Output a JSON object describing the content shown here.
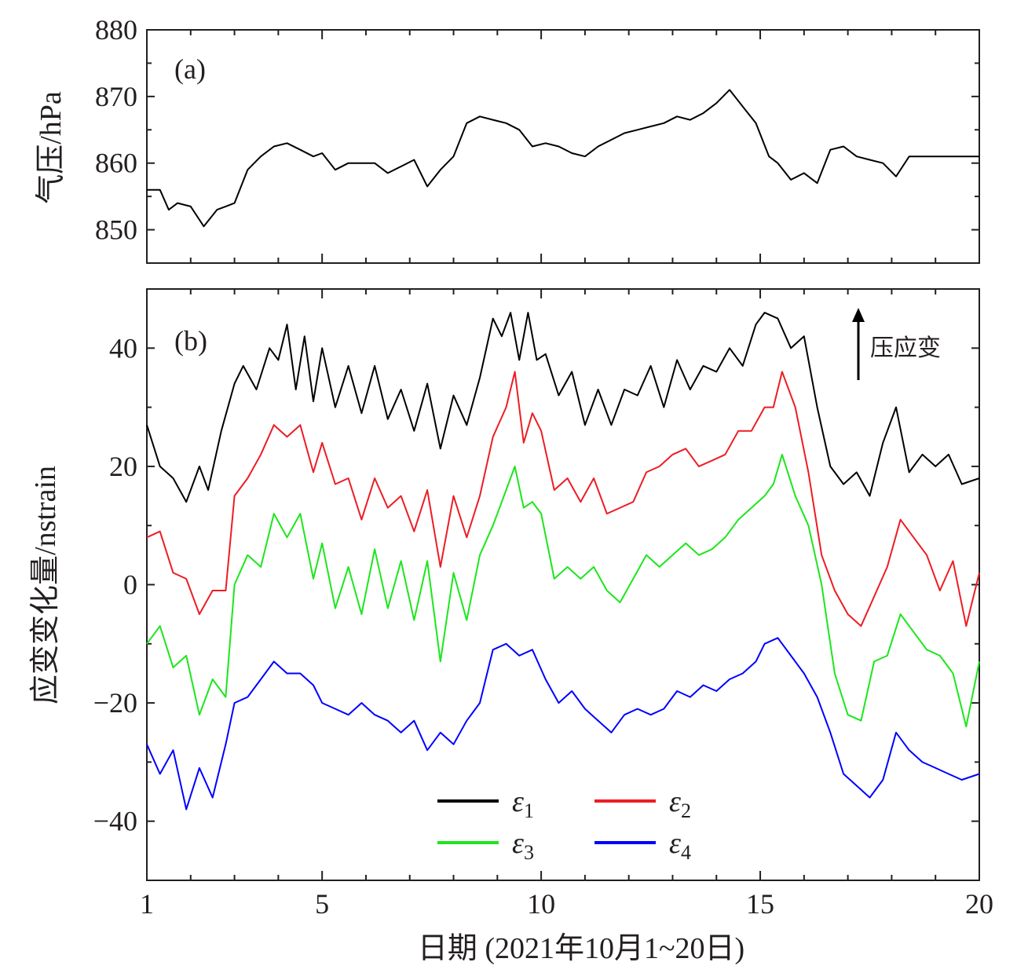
{
  "chart_data": [
    {
      "panel": "a",
      "type": "line",
      "panel_label": "(a)",
      "ylabel": "气压/hPa",
      "ylim": [
        845,
        880
      ],
      "yticks": [
        {
          "value": 850,
          "label": "850"
        },
        {
          "value": 860,
          "label": "860"
        },
        {
          "value": 870,
          "label": "870"
        },
        {
          "value": 880,
          "label": "880"
        }
      ],
      "xlim": [
        1,
        20
      ],
      "series": [
        {
          "name": "气压",
          "color": "#000000",
          "x": [
            1,
            1.3,
            1.5,
            1.7,
            2.0,
            2.3,
            2.6,
            2.8,
            3.0,
            3.3,
            3.6,
            3.9,
            4.2,
            4.5,
            4.8,
            5.0,
            5.3,
            5.6,
            5.9,
            6.2,
            6.5,
            6.8,
            7.1,
            7.4,
            7.7,
            8.0,
            8.3,
            8.6,
            8.9,
            9.2,
            9.5,
            9.8,
            10.1,
            10.4,
            10.7,
            11.0,
            11.3,
            11.6,
            11.9,
            12.2,
            12.5,
            12.8,
            13.1,
            13.4,
            13.7,
            14.0,
            14.3,
            14.6,
            14.9,
            15.2,
            15.4,
            15.7,
            16.0,
            16.3,
            16.6,
            16.9,
            17.2,
            17.5,
            17.8,
            18.1,
            18.4,
            18.7,
            19.0,
            19.3,
            19.6,
            20.0
          ],
          "y": [
            856,
            856,
            853,
            854,
            853.5,
            850.5,
            853,
            853.5,
            854,
            859,
            861,
            862.5,
            863,
            862,
            861,
            861.5,
            859,
            860,
            860,
            860,
            858.5,
            859.5,
            860.5,
            856.5,
            859,
            861,
            866,
            867,
            866.5,
            866,
            865,
            862.5,
            863,
            862.5,
            861.5,
            861,
            862.5,
            863.5,
            864.5,
            865,
            865.5,
            866,
            867,
            866.5,
            867.5,
            869,
            871,
            868.5,
            866,
            861,
            860,
            857.5,
            858.5,
            857,
            862,
            862.5,
            861,
            860.5,
            860,
            858,
            861,
            861,
            861,
            861,
            861,
            861
          ]
        }
      ]
    },
    {
      "panel": "b",
      "type": "line",
      "panel_label": "(b)",
      "ylabel": "应变变化量/nstrain",
      "xlabel": "日期 (2021年10月1~20日)",
      "ylim": [
        -50,
        50
      ],
      "yticks": [
        {
          "value": -40,
          "label": "−40"
        },
        {
          "value": -20,
          "label": "−20"
        },
        {
          "value": 0,
          "label": "0"
        },
        {
          "value": 20,
          "label": "20"
        },
        {
          "value": 40,
          "label": "40"
        }
      ],
      "xlim": [
        1,
        20
      ],
      "xticks": [
        {
          "value": 1,
          "label": "1"
        },
        {
          "value": 5,
          "label": "5"
        },
        {
          "value": 10,
          "label": "10"
        },
        {
          "value": 15,
          "label": "15"
        },
        {
          "value": 20,
          "label": "20"
        }
      ],
      "annotation": "压应变",
      "series": [
        {
          "name": "ε1",
          "color": "#000000",
          "x": [
            1,
            1.3,
            1.6,
            1.9,
            2.2,
            2.4,
            2.7,
            3.0,
            3.2,
            3.5,
            3.8,
            4.0,
            4.2,
            4.4,
            4.6,
            4.8,
            5.0,
            5.3,
            5.6,
            5.9,
            6.2,
            6.5,
            6.8,
            7.1,
            7.4,
            7.7,
            8.0,
            8.3,
            8.6,
            8.9,
            9.1,
            9.3,
            9.5,
            9.7,
            9.9,
            10.1,
            10.4,
            10.7,
            11.0,
            11.3,
            11.6,
            11.9,
            12.2,
            12.5,
            12.8,
            13.1,
            13.4,
            13.7,
            14.0,
            14.3,
            14.6,
            14.9,
            15.1,
            15.4,
            15.7,
            16.0,
            16.3,
            16.6,
            16.9,
            17.2,
            17.5,
            17.8,
            18.1,
            18.4,
            18.7,
            19.0,
            19.3,
            19.6,
            20.0
          ],
          "y": [
            27,
            20,
            18,
            14,
            20,
            16,
            26,
            34,
            37,
            33,
            40,
            38,
            44,
            33,
            42,
            31,
            40,
            30,
            37,
            29,
            37,
            28,
            33,
            26,
            34,
            23,
            32,
            27,
            35,
            45,
            42,
            46,
            38,
            46,
            38,
            39,
            32,
            36,
            27,
            33,
            27,
            33,
            32,
            37,
            30,
            38,
            33,
            37,
            36,
            40,
            37,
            44,
            46,
            45,
            40,
            42,
            30,
            20,
            17,
            19,
            15,
            24,
            30,
            19,
            22,
            20,
            22,
            17,
            18
          ]
        },
        {
          "name": "ε2",
          "color": "#ed1c24",
          "x": [
            1,
            1.3,
            1.6,
            1.9,
            2.2,
            2.5,
            2.8,
            3.0,
            3.3,
            3.6,
            3.9,
            4.2,
            4.5,
            4.8,
            5.0,
            5.3,
            5.6,
            5.9,
            6.2,
            6.5,
            6.8,
            7.1,
            7.4,
            7.7,
            8.0,
            8.3,
            8.6,
            8.9,
            9.2,
            9.4,
            9.6,
            9.8,
            10.0,
            10.3,
            10.6,
            10.9,
            11.2,
            11.5,
            11.8,
            12.1,
            12.4,
            12.7,
            13.0,
            13.3,
            13.6,
            13.9,
            14.2,
            14.5,
            14.8,
            15.1,
            15.3,
            15.5,
            15.8,
            16.1,
            16.4,
            16.7,
            17.0,
            17.3,
            17.6,
            17.9,
            18.2,
            18.5,
            18.8,
            19.1,
            19.4,
            19.7,
            20.0
          ],
          "y": [
            8,
            9,
            2,
            1,
            -5,
            -1,
            -1,
            15,
            18,
            22,
            27,
            25,
            27,
            19,
            24,
            17,
            18,
            11,
            18,
            13,
            15,
            9,
            16,
            3,
            15,
            8,
            15,
            25,
            30,
            36,
            24,
            29,
            26,
            16,
            18,
            14,
            18,
            12,
            13,
            14,
            19,
            20,
            22,
            23,
            20,
            21,
            22,
            26,
            26,
            30,
            30,
            36,
            30,
            19,
            5,
            -1,
            -5,
            -7,
            -2,
            3,
            11,
            8,
            5,
            -1,
            4,
            -7,
            2
          ]
        },
        {
          "name": "ε3",
          "color": "#1ce61c",
          "x": [
            1,
            1.3,
            1.6,
            1.9,
            2.2,
            2.5,
            2.8,
            3.0,
            3.3,
            3.6,
            3.9,
            4.2,
            4.5,
            4.8,
            5.0,
            5.3,
            5.6,
            5.9,
            6.2,
            6.5,
            6.8,
            7.1,
            7.4,
            7.7,
            8.0,
            8.3,
            8.6,
            8.9,
            9.2,
            9.4,
            9.6,
            9.8,
            10.0,
            10.3,
            10.6,
            10.9,
            11.2,
            11.5,
            11.8,
            12.1,
            12.4,
            12.7,
            13.0,
            13.3,
            13.6,
            13.9,
            14.2,
            14.5,
            14.8,
            15.1,
            15.3,
            15.5,
            15.8,
            16.1,
            16.4,
            16.7,
            17.0,
            17.3,
            17.6,
            17.9,
            18.2,
            18.5,
            18.8,
            19.1,
            19.4,
            19.7,
            20.0
          ],
          "y": [
            -10,
            -7,
            -14,
            -12,
            -22,
            -16,
            -19,
            0,
            5,
            3,
            12,
            8,
            12,
            1,
            7,
            -4,
            3,
            -5,
            6,
            -4,
            4,
            -6,
            4,
            -13,
            2,
            -6,
            5,
            10,
            16,
            20,
            13,
            14,
            12,
            1,
            3,
            1,
            3,
            -1,
            -3,
            1,
            5,
            3,
            5,
            7,
            5,
            6,
            8,
            11,
            13,
            15,
            17,
            22,
            15,
            10,
            0,
            -15,
            -22,
            -23,
            -13,
            -12,
            -5,
            -8,
            -11,
            -12,
            -15,
            -24,
            -13
          ]
        },
        {
          "name": "ε4",
          "color": "#0000ff",
          "x": [
            1,
            1.3,
            1.6,
            1.9,
            2.2,
            2.5,
            2.8,
            3.0,
            3.3,
            3.6,
            3.9,
            4.2,
            4.5,
            4.8,
            5.0,
            5.3,
            5.6,
            5.9,
            6.2,
            6.5,
            6.8,
            7.1,
            7.4,
            7.7,
            8.0,
            8.3,
            8.6,
            8.9,
            9.2,
            9.5,
            9.8,
            10.1,
            10.4,
            10.7,
            11.0,
            11.3,
            11.6,
            11.9,
            12.2,
            12.5,
            12.8,
            13.1,
            13.4,
            13.7,
            14.0,
            14.3,
            14.6,
            14.9,
            15.1,
            15.4,
            15.7,
            16.0,
            16.3,
            16.6,
            16.9,
            17.2,
            17.5,
            17.8,
            18.1,
            18.4,
            18.7,
            19.0,
            19.3,
            19.6,
            20.0
          ],
          "y": [
            -27,
            -32,
            -28,
            -38,
            -31,
            -36,
            -27,
            -20,
            -19,
            -16,
            -13,
            -15,
            -15,
            -17,
            -20,
            -21,
            -22,
            -20,
            -22,
            -23,
            -25,
            -23,
            -28,
            -25,
            -27,
            -23,
            -20,
            -11,
            -10,
            -12,
            -11,
            -16,
            -20,
            -18,
            -21,
            -23,
            -25,
            -22,
            -21,
            -22,
            -21,
            -18,
            -19,
            -17,
            -18,
            -16,
            -15,
            -13,
            -10,
            -9,
            -12,
            -15,
            -19,
            -25,
            -32,
            -34,
            -36,
            -33,
            -25,
            -28,
            -30,
            -31,
            -32,
            -33,
            -32
          ]
        }
      ],
      "legend": [
        {
          "label": "ε",
          "sub": "1",
          "color": "#000000"
        },
        {
          "label": "ε",
          "sub": "2",
          "color": "#ed1c24"
        },
        {
          "label": "ε",
          "sub": "3",
          "color": "#1ce61c"
        },
        {
          "label": "ε",
          "sub": "4",
          "color": "#0000ff"
        }
      ]
    }
  ]
}
